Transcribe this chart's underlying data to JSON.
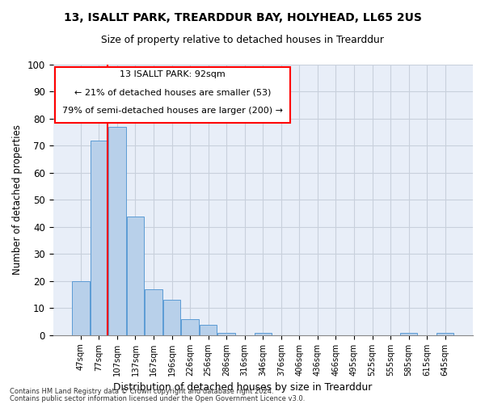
{
  "title": "13, ISALLT PARK, TREARDDUR BAY, HOLYHEAD, LL65 2US",
  "subtitle": "Size of property relative to detached houses in Trearddur",
  "xlabel": "Distribution of detached houses by size in Trearddur",
  "ylabel": "Number of detached properties",
  "categories": [
    "47sqm",
    "77sqm",
    "107sqm",
    "137sqm",
    "167sqm",
    "196sqm",
    "226sqm",
    "256sqm",
    "286sqm",
    "316sqm",
    "346sqm",
    "376sqm",
    "406sqm",
    "436sqm",
    "466sqm",
    "495sqm",
    "525sqm",
    "555sqm",
    "585sqm",
    "615sqm",
    "645sqm"
  ],
  "values": [
    20,
    72,
    77,
    44,
    17,
    13,
    6,
    4,
    1,
    0,
    1,
    0,
    0,
    0,
    0,
    0,
    0,
    0,
    1,
    0,
    1
  ],
  "bar_color": "#b8d0ea",
  "bar_edge_color": "#5b9bd5",
  "annotation_text_line1": "13 ISALLT PARK: 92sqm",
  "annotation_text_line2": "← 21% of detached houses are smaller (53)",
  "annotation_text_line3": "79% of semi-detached houses are larger (200) →",
  "footnote1": "Contains HM Land Registry data © Crown copyright and database right 2024.",
  "footnote2": "Contains public sector information licensed under the Open Government Licence v3.0.",
  "ylim": [
    0,
    100
  ],
  "yticks": [
    0,
    10,
    20,
    30,
    40,
    50,
    60,
    70,
    80,
    90,
    100
  ],
  "grid_color": "#c8d0dc",
  "background_color": "#e8eef8",
  "red_line_x": 1.47
}
